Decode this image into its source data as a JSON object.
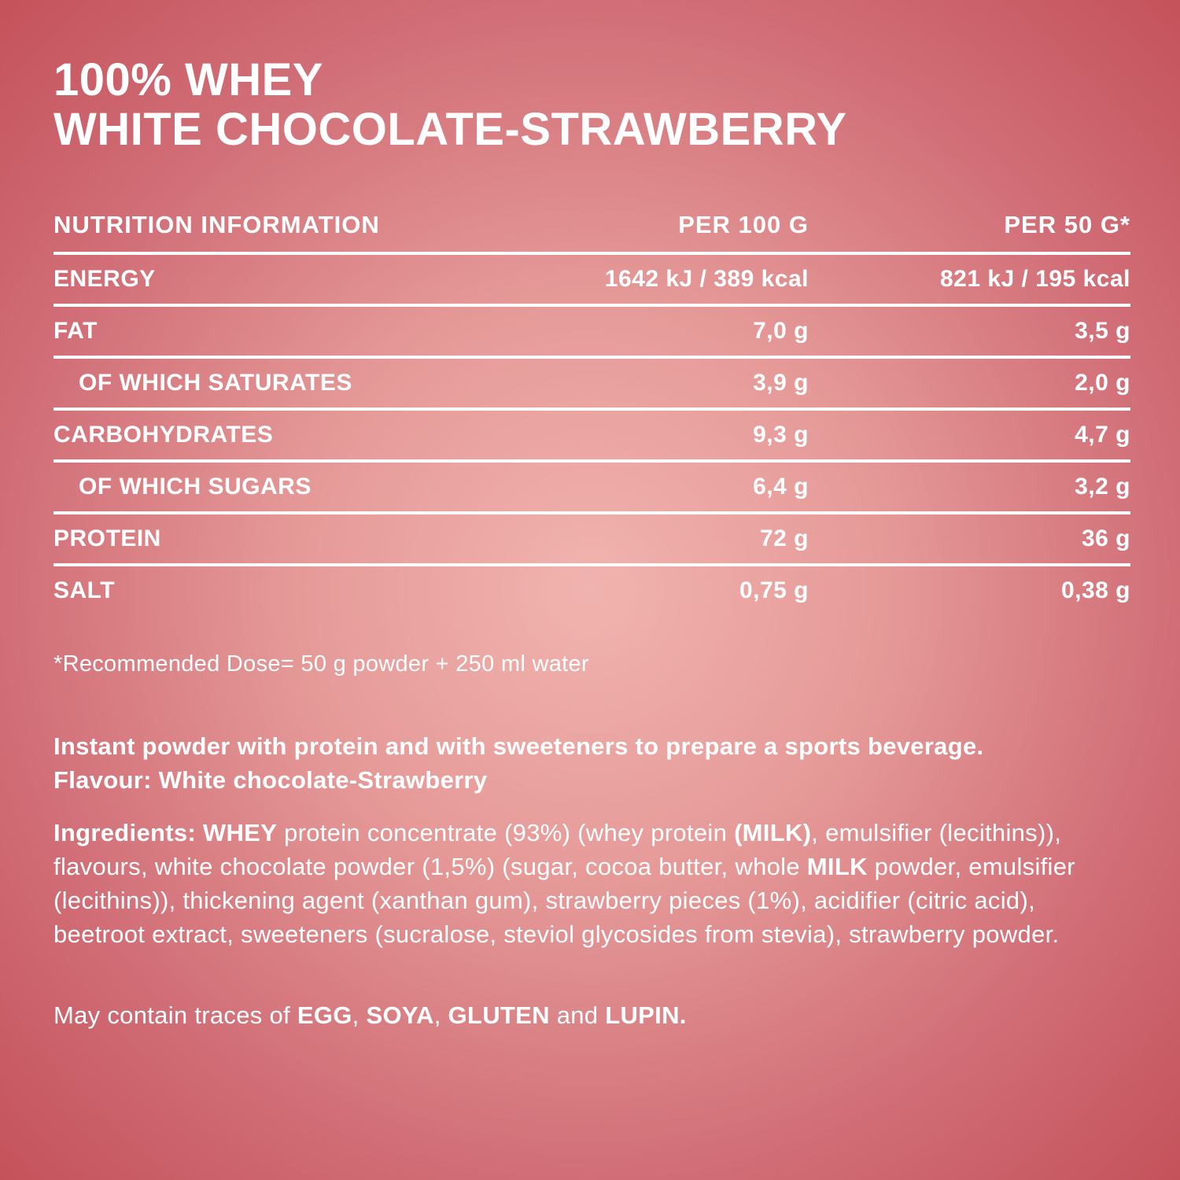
{
  "product": {
    "title_line1": "100% WHEY",
    "title_line2": "WHITE CHOCOLATE-STRAWBERRY"
  },
  "colors": {
    "background_center": "#f1b3af",
    "background_edge": "#c4525b",
    "text": "#ffffff",
    "table_rule": "#ffffff"
  },
  "nutrition_table": {
    "header": {
      "label": "NUTRITION INFORMATION",
      "per_100g": "PER 100 G",
      "per_50g": "PER 50 G*"
    },
    "rows": [
      {
        "label": "ENERGY",
        "per_100g": "1642 kJ / 389 kcal",
        "per_50g": "821 kJ / 195 kcal",
        "indent": false
      },
      {
        "label": "FAT",
        "per_100g": "7,0 g",
        "per_50g": "3,5 g",
        "indent": false
      },
      {
        "label": "OF WHICH SATURATES",
        "per_100g": "3,9 g",
        "per_50g": "2,0 g",
        "indent": true
      },
      {
        "label": "CARBOHYDRATES",
        "per_100g": "9,3 g",
        "per_50g": "4,7 g",
        "indent": false
      },
      {
        "label": "OF WHICH SUGARS",
        "per_100g": "6,4 g",
        "per_50g": "3,2 g",
        "indent": true
      },
      {
        "label": "PROTEIN",
        "per_100g": "72 g",
        "per_50g": "36 g",
        "indent": false
      },
      {
        "label": "SALT",
        "per_100g": "0,75 g",
        "per_50g": "0,38 g",
        "indent": false
      }
    ],
    "footnote": "*Recommended Dose= 50 g powder + 250 ml water"
  },
  "description": {
    "line1": "Instant powder with protein and with sweeteners to prepare a sports beverage.",
    "line2": "Flavour: White chocolate-Strawberry"
  },
  "ingredients": {
    "segments": [
      {
        "text": "Ingredients: WHEY",
        "bold": true
      },
      {
        "text": " protein concentrate (93%) (whey protein ",
        "bold": false
      },
      {
        "text": "(MILK)",
        "bold": true
      },
      {
        "text": ", emulsifier (lecithins)), flavours, white chocolate powder (1,5%) (sugar, cocoa butter, whole ",
        "bold": false
      },
      {
        "text": "MILK",
        "bold": true
      },
      {
        "text": " powder, emulsifier (lecithins)), thickening agent (xanthan gum), strawberry pieces (1%), acidifier (citric acid), beetroot extract, sweeteners (sucralose, steviol glycosides from stevia), strawberry powder.",
        "bold": false
      }
    ]
  },
  "allergens": {
    "segments": [
      {
        "text": "May contain traces of ",
        "bold": false
      },
      {
        "text": "EGG",
        "bold": true
      },
      {
        "text": ", ",
        "bold": false
      },
      {
        "text": "SOYA",
        "bold": true
      },
      {
        "text": ", ",
        "bold": false
      },
      {
        "text": "GLUTEN",
        "bold": true
      },
      {
        "text": " and ",
        "bold": false
      },
      {
        "text": "LUPIN.",
        "bold": true
      }
    ]
  }
}
